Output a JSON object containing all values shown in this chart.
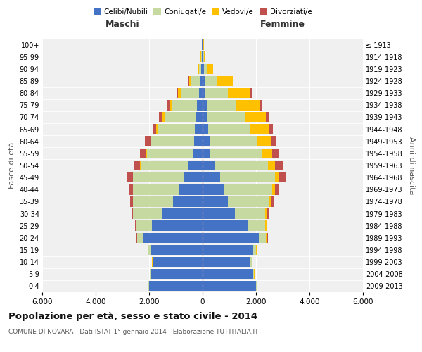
{
  "age_groups": [
    "0-4",
    "5-9",
    "10-14",
    "15-19",
    "20-24",
    "25-29",
    "30-34",
    "35-39",
    "40-44",
    "45-49",
    "50-54",
    "55-59",
    "60-64",
    "65-69",
    "70-74",
    "75-79",
    "80-84",
    "85-89",
    "90-94",
    "95-99",
    "100+"
  ],
  "birth_years": [
    "2009-2013",
    "2004-2008",
    "1999-2003",
    "1994-1998",
    "1989-1993",
    "1984-1988",
    "1979-1983",
    "1974-1978",
    "1969-1973",
    "1964-1968",
    "1959-1963",
    "1954-1958",
    "1949-1953",
    "1944-1948",
    "1939-1943",
    "1934-1938",
    "1929-1933",
    "1924-1928",
    "1919-1923",
    "1914-1918",
    "≤ 1913"
  ],
  "males": {
    "celibi": [
      2000,
      1950,
      1850,
      1950,
      2200,
      1900,
      1500,
      1100,
      900,
      700,
      520,
      380,
      320,
      280,
      230,
      200,
      120,
      80,
      40,
      30,
      20
    ],
    "coniugati": [
      15,
      20,
      30,
      80,
      250,
      600,
      1100,
      1500,
      1700,
      1900,
      1800,
      1700,
      1600,
      1400,
      1200,
      950,
      700,
      350,
      80,
      30,
      10
    ],
    "vedovi": [
      5,
      5,
      5,
      5,
      5,
      5,
      5,
      5,
      10,
      15,
      20,
      30,
      40,
      60,
      80,
      100,
      100,
      80,
      30,
      10,
      5
    ],
    "divorziati": [
      5,
      5,
      5,
      5,
      10,
      20,
      50,
      100,
      130,
      200,
      200,
      230,
      200,
      130,
      130,
      100,
      60,
      10,
      5,
      5,
      2
    ]
  },
  "females": {
    "nubili": [
      2000,
      1900,
      1800,
      1900,
      2100,
      1700,
      1200,
      950,
      800,
      650,
      450,
      300,
      250,
      200,
      180,
      150,
      100,
      80,
      50,
      30,
      20
    ],
    "coniugate": [
      20,
      25,
      40,
      100,
      280,
      650,
      1150,
      1550,
      1800,
      2050,
      2000,
      1900,
      1800,
      1600,
      1400,
      1100,
      850,
      450,
      100,
      30,
      10
    ],
    "vedove": [
      10,
      15,
      20,
      30,
      40,
      50,
      60,
      80,
      100,
      150,
      250,
      400,
      500,
      700,
      800,
      900,
      850,
      600,
      250,
      50,
      10
    ],
    "divorziate": [
      5,
      5,
      5,
      10,
      15,
      25,
      60,
      100,
      150,
      280,
      300,
      280,
      200,
      120,
      100,
      80,
      50,
      10,
      5,
      5,
      2
    ]
  },
  "colors": {
    "celibi": "#4472c4",
    "coniugati": "#c5d9a0",
    "vedovi": "#ffc000",
    "divorziati": "#c0504d"
  },
  "title": "Popolazione per età, sesso e stato civile - 2014",
  "subtitle": "COMUNE DI NOVARA - Dati ISTAT 1° gennaio 2014 - Elaborazione TUTTITALIA.IT",
  "xlabel_left": "Maschi",
  "xlabel_right": "Femmine",
  "ylabel_left": "Fasce di età",
  "ylabel_right": "Anni di nascita",
  "xlim": 6000,
  "xticks": [
    -6000,
    -4000,
    -2000,
    0,
    2000,
    4000,
    6000
  ],
  "xtick_labels": [
    "6.000",
    "4.000",
    "2.000",
    "0",
    "2.000",
    "4.000",
    "6.000"
  ],
  "legend_labels": [
    "Celibi/Nubili",
    "Coniugati/e",
    "Vedovi/e",
    "Divorziati/e"
  ],
  "background_color": "#ffffff",
  "plot_bg_color": "#f0f0f0",
  "grid_color": "#cccccc"
}
